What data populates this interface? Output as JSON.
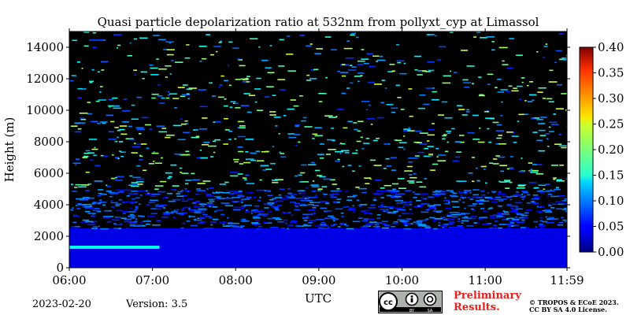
{
  "chart_data": {
    "type": "heatmap",
    "title": "Quasi particle depolarization ratio at 532nm from pollyxt_cyp at Limassol",
    "xlabel": "UTC",
    "ylabel": "Height (m)",
    "x_ticks": [
      "06:00",
      "07:00",
      "08:00",
      "09:00",
      "10:00",
      "11:00",
      "11:59"
    ],
    "x_range": [
      "06:00",
      "11:59"
    ],
    "y_ticks": [
      0,
      2000,
      4000,
      6000,
      8000,
      10000,
      12000,
      14000
    ],
    "y_range": [
      0,
      15000
    ],
    "colorbar": {
      "colormap": "jet",
      "range": [
        0.0,
        0.4
      ],
      "ticks": [
        "0.00",
        "0.05",
        "0.10",
        "0.15",
        "0.20",
        "0.25",
        "0.30",
        "0.35",
        "0.40"
      ]
    },
    "background_color": "#000000",
    "regions": [
      {
        "time": [
          "06:00",
          "11:59"
        ],
        "height": [
          0,
          2500
        ],
        "value": 0.04
      },
      {
        "time": [
          "06:00",
          "07:05"
        ],
        "height": [
          1200,
          1400
        ],
        "value": 0.15
      },
      {
        "time": [
          "06:00",
          "11:59"
        ],
        "height": [
          2500,
          5000
        ],
        "value": 0.08
      },
      {
        "time": [
          "06:00",
          "11:59"
        ],
        "height": [
          5000,
          15000
        ],
        "value": 0.15
      }
    ]
  },
  "footer": {
    "date": "2023-02-20",
    "version": "Version: 3.5",
    "preliminary_line1": "Preliminary",
    "preliminary_line2": "Results.",
    "copyright_line1": "© TROPOS & ECoE 2023.",
    "copyright_line2": "CC BY SA 4.0 License.",
    "license_badge": "cc-by-sa-icon"
  }
}
